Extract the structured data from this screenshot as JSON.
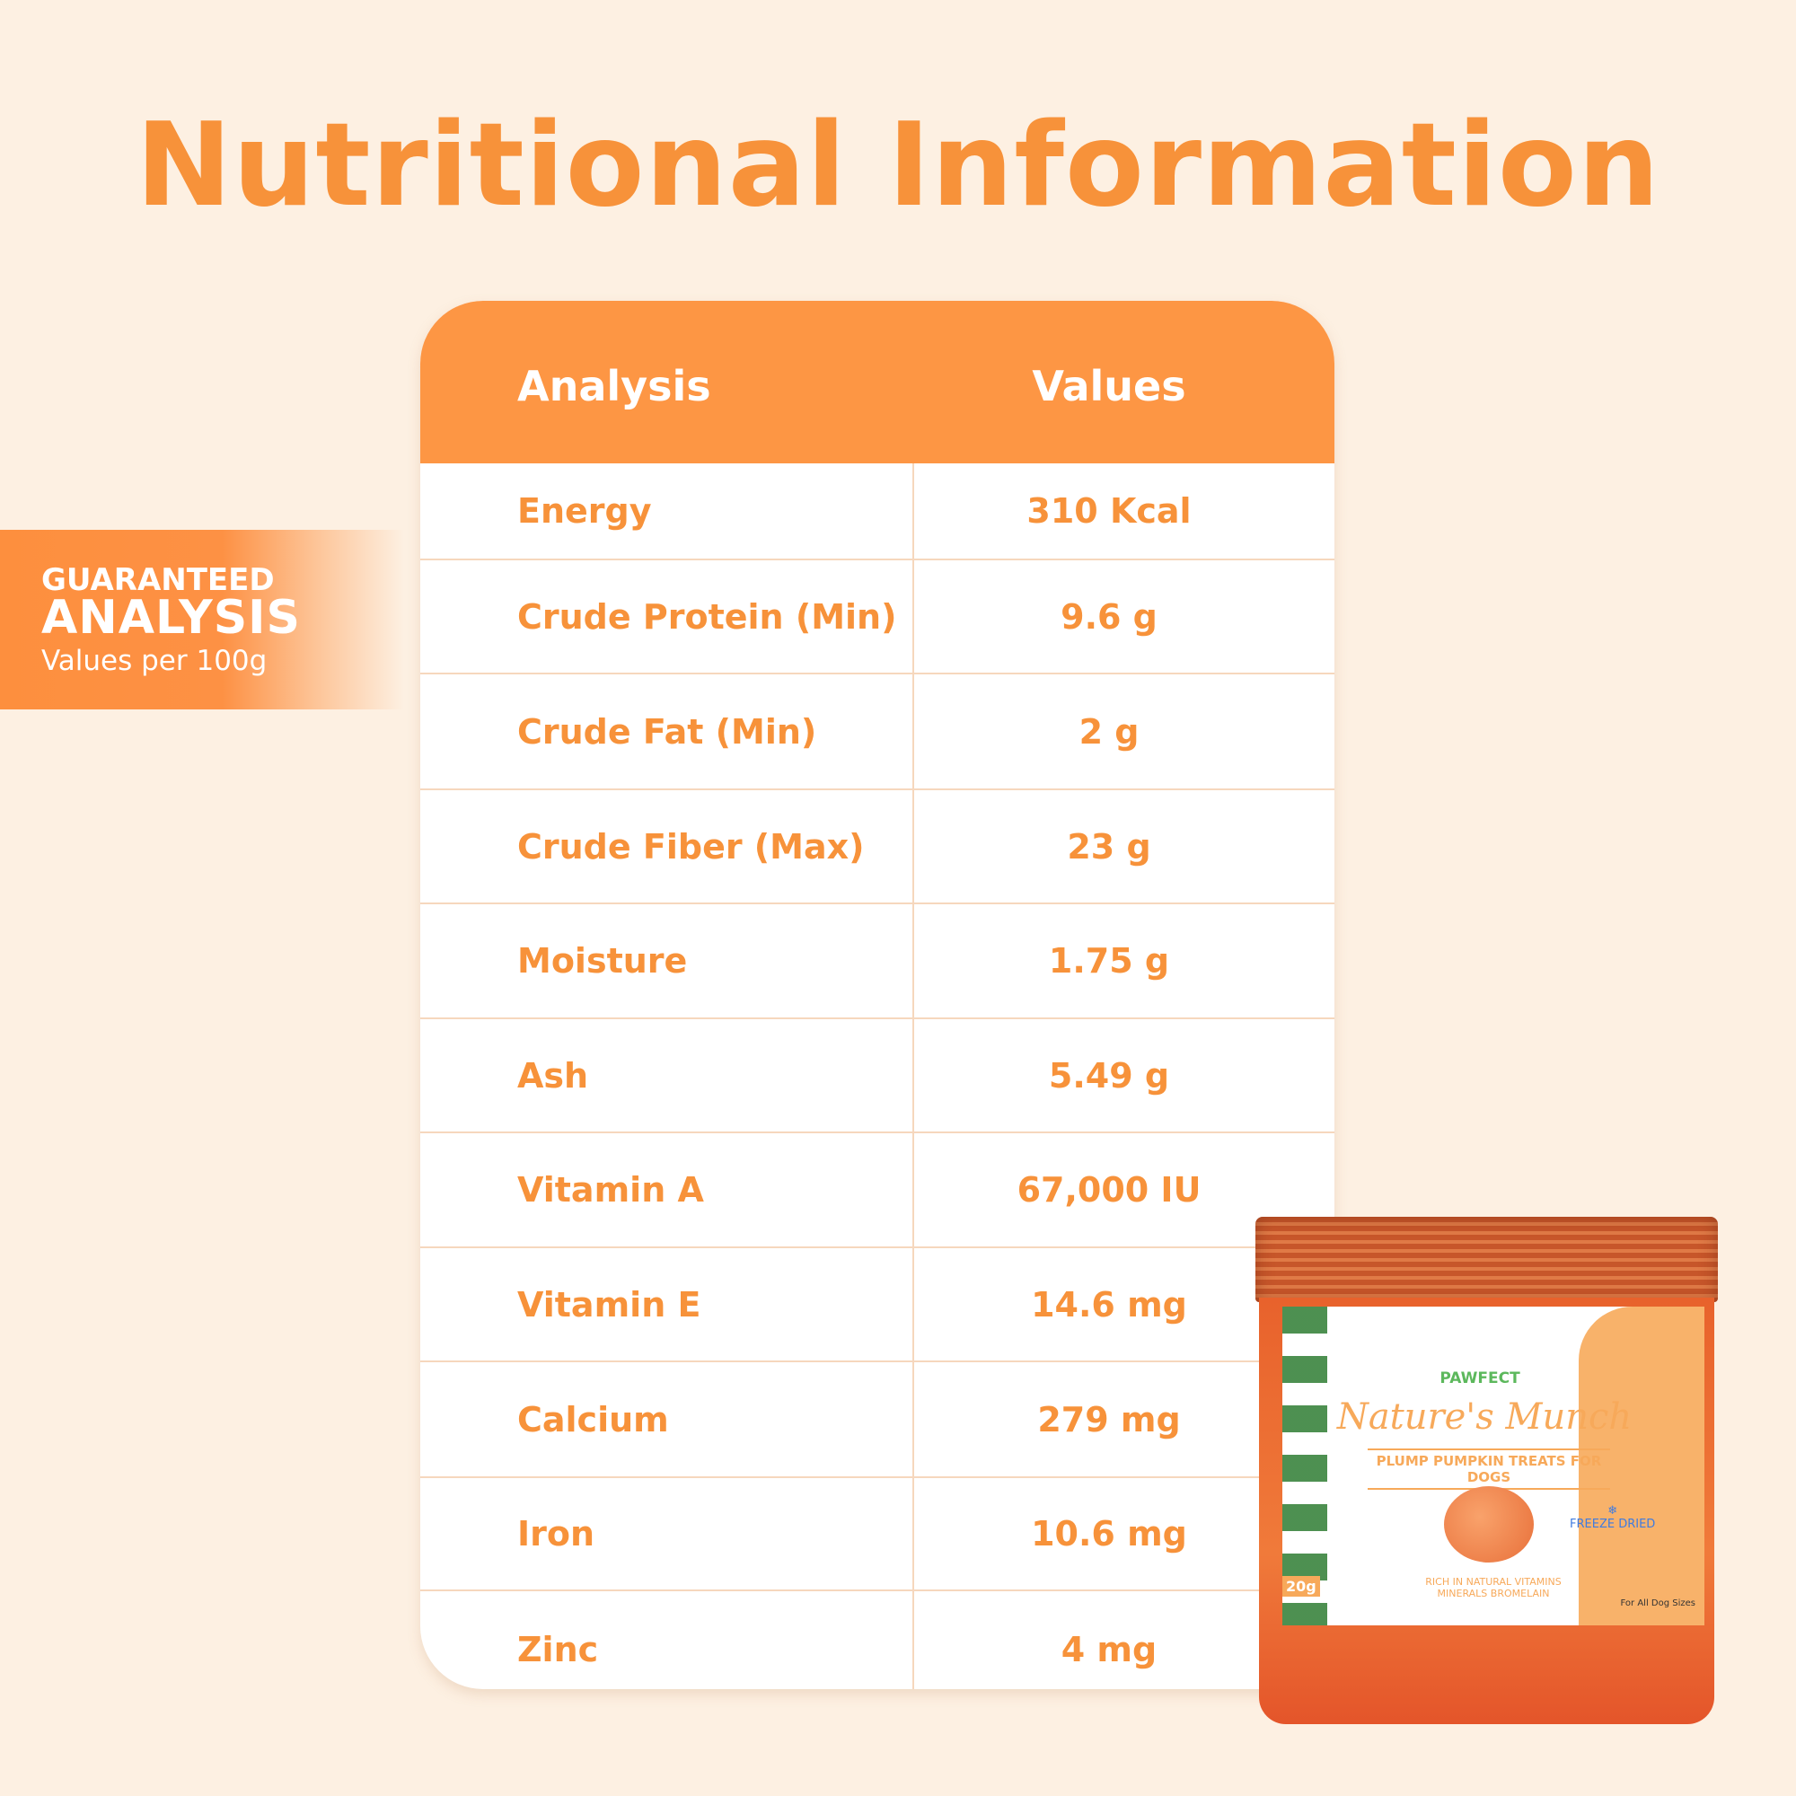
{
  "title": "Nutritional Information",
  "badge": {
    "line1": "GUARANTEED",
    "line2": "ANALYSIS",
    "line3": "Values per 100g"
  },
  "table": {
    "headers": [
      "Analysis",
      "Values"
    ],
    "rows": [
      {
        "analysis": "Energy",
        "value": "310 Kcal"
      },
      {
        "analysis": "Crude Protein (Min)",
        "value": "9.6 g"
      },
      {
        "analysis": "Crude Fat (Min)",
        "value": "2 g"
      },
      {
        "analysis": "Crude Fiber (Max)",
        "value": "23 g"
      },
      {
        "analysis": "Moisture",
        "value": "1.75 g"
      },
      {
        "analysis": "Ash",
        "value": "5.49 g"
      },
      {
        "analysis": "Vitamin A",
        "value": "67,000 IU"
      },
      {
        "analysis": "Vitamin E",
        "value": "14.6 mg"
      },
      {
        "analysis": "Calcium",
        "value": "279 mg"
      },
      {
        "analysis": "Iron",
        "value": "10.6 mg"
      },
      {
        "analysis": "Zinc",
        "value": "4 mg"
      }
    ]
  },
  "product": {
    "brand": "PAWFECT",
    "name": "Nature's Munch",
    "subtitle": "PLUMP PUMPKIN TREATS FOR DOGS",
    "badge": "FREEZE DRIED",
    "claim": "RICH IN NATURAL VITAMINS MINERALS BROMELAIN",
    "size": "20g",
    "audience": "For All Dog Sizes"
  },
  "colors": {
    "accent": "#fd9644",
    "text": "#f7923a",
    "background": "#fdf0e2"
  }
}
